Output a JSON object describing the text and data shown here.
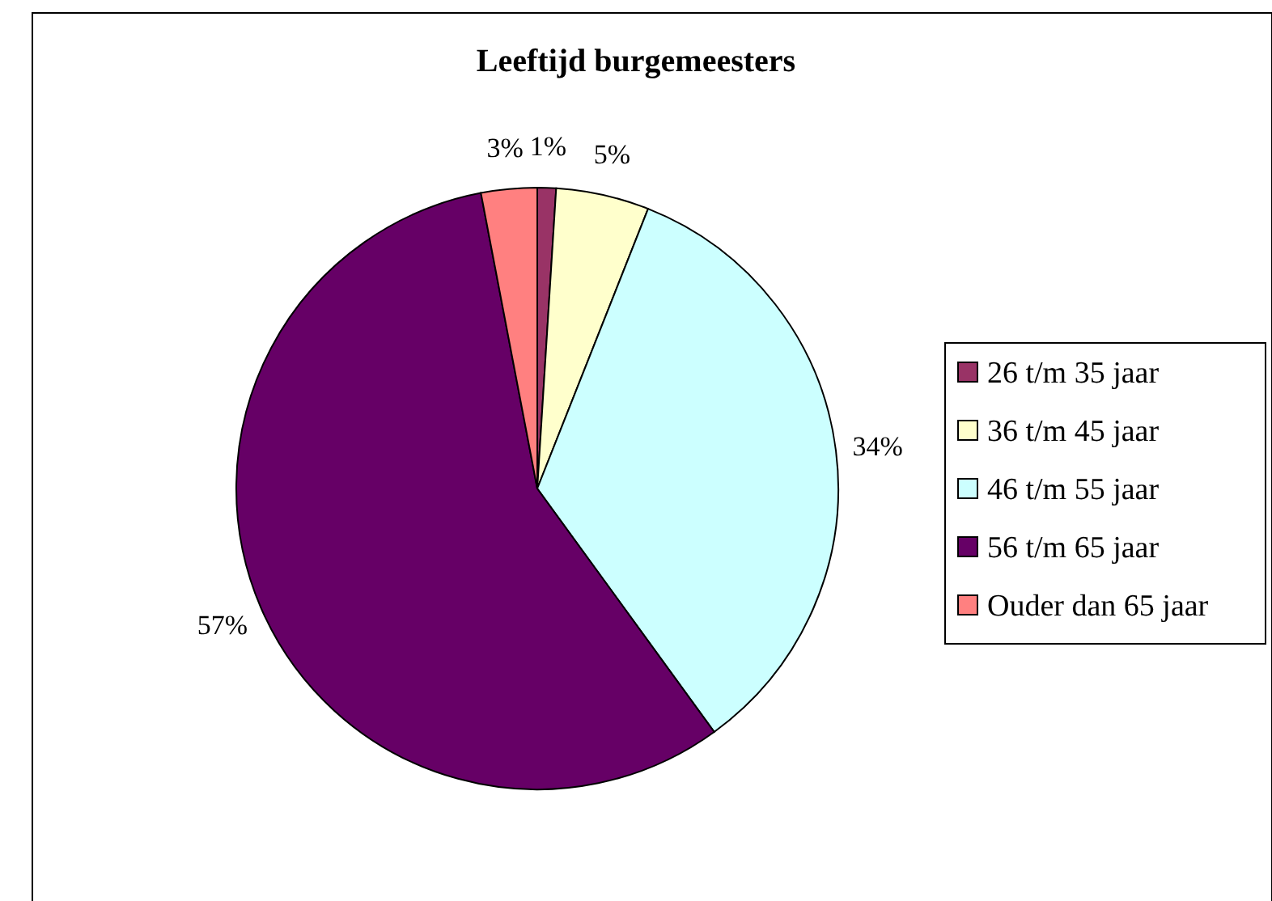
{
  "chart_data": {
    "type": "pie",
    "title": "Leeftijd burgemeesters",
    "categories": [
      "26 t/m 35 jaar",
      "36 t/m 45 jaar",
      "46 t/m 55 jaar",
      "56 t/m 65 jaar",
      "Ouder dan 65 jaar"
    ],
    "values": [
      1,
      5,
      34,
      57,
      3
    ],
    "colors": [
      "#993366",
      "#ffffcc",
      "#ccffff",
      "#660066",
      "#ff8080"
    ],
    "value_labels": [
      "1%",
      "5%",
      "34%",
      "57%",
      "3%"
    ],
    "legend": "right"
  }
}
